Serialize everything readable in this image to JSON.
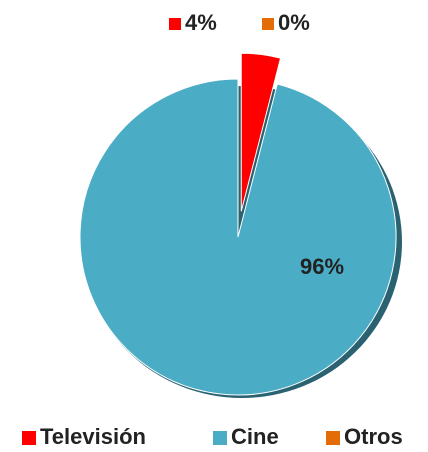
{
  "chart_data": {
    "type": "pie",
    "categories": [
      "Televisión",
      "Cine",
      "Otros"
    ],
    "values": [
      4,
      96,
      0
    ],
    "value_labels": [
      "4%",
      "96%",
      "0%"
    ],
    "colors": [
      "#ff0000",
      "#4bacc6",
      "#e36c09"
    ],
    "legend": "bottom"
  }
}
